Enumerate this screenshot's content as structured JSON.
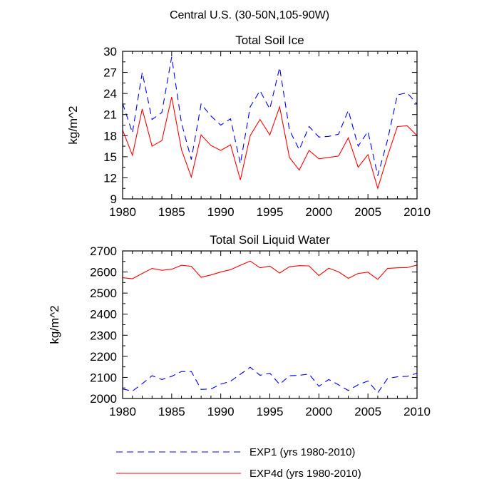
{
  "figure_title": "Central U.S. (30-50N,105-90W)",
  "colors": {
    "EXP1": "#0000ff",
    "EXP4d": "#ff0000",
    "axis": "#000000"
  },
  "legend": [
    {
      "label": "EXP1 (yrs 1980-2010)",
      "color": "#0000ff",
      "dash": "dashed"
    },
    {
      "label": "EXP4d (yrs 1980-2010)",
      "color": "#ff0000",
      "dash": "solid"
    }
  ],
  "chart_data": [
    {
      "type": "line",
      "title": "Total Soil Ice",
      "xlabel": "",
      "ylabel": "kg/m^2",
      "xlim": [
        1980,
        2010
      ],
      "ylim": [
        9,
        30
      ],
      "xticks": [
        1980,
        1985,
        1990,
        1995,
        2000,
        2005,
        2010
      ],
      "yticks": [
        9,
        12,
        15,
        18,
        21,
        24,
        27,
        30
      ],
      "x": [
        1980,
        1981,
        1982,
        1983,
        1984,
        1985,
        1986,
        1987,
        1988,
        1989,
        1990,
        1991,
        1992,
        1993,
        1994,
        1995,
        1996,
        1997,
        1998,
        1999,
        2000,
        2001,
        2002,
        2003,
        2004,
        2005,
        2006,
        2007,
        2008,
        2009,
        2010
      ],
      "series": [
        {
          "name": "EXP1",
          "color": "#0000ff",
          "dash": "dashed",
          "values": [
            22.6,
            18.4,
            27.0,
            20.3,
            21.3,
            29.2,
            19.8,
            14.6,
            22.5,
            20.8,
            19.5,
            20.4,
            14.0,
            22.1,
            24.4,
            21.8,
            27.7,
            18.8,
            16.0,
            19.3,
            17.8,
            17.9,
            18.2,
            21.6,
            16.5,
            18.6,
            12.3,
            17.4,
            23.8,
            24.1,
            22.5
          ]
        },
        {
          "name": "EXP4d",
          "color": "#ff0000",
          "dash": "solid",
          "values": [
            18.8,
            15.2,
            21.8,
            16.5,
            17.3,
            23.5,
            16.0,
            12.1,
            18.1,
            16.6,
            15.9,
            16.7,
            11.7,
            18.0,
            20.3,
            18.1,
            22.1,
            14.9,
            13.1,
            15.9,
            14.7,
            14.9,
            15.1,
            17.7,
            13.5,
            15.3,
            10.5,
            15.1,
            19.3,
            19.4,
            18.0
          ]
        }
      ]
    },
    {
      "type": "line",
      "title": "Total Soil Liquid Water",
      "xlabel": "",
      "ylabel": "kg/m^2",
      "xlim": [
        1980,
        2010
      ],
      "ylim": [
        2000,
        2700
      ],
      "xticks": [
        1980,
        1985,
        1990,
        1995,
        2000,
        2005,
        2010
      ],
      "yticks": [
        2000,
        2100,
        2200,
        2300,
        2400,
        2500,
        2600,
        2700
      ],
      "x": [
        1980,
        1981,
        1982,
        1983,
        1984,
        1985,
        1986,
        1987,
        1988,
        1989,
        1990,
        1991,
        1992,
        1993,
        1994,
        1995,
        1996,
        1997,
        1998,
        1999,
        2000,
        2001,
        2002,
        2003,
        2004,
        2005,
        2006,
        2007,
        2008,
        2009,
        2010
      ],
      "series": [
        {
          "name": "EXP1",
          "color": "#0000ff",
          "dash": "dashed",
          "values": [
            2045,
            2035,
            2070,
            2108,
            2090,
            2105,
            2128,
            2128,
            2043,
            2045,
            2068,
            2082,
            2115,
            2148,
            2110,
            2120,
            2067,
            2108,
            2110,
            2116,
            2058,
            2090,
            2065,
            2038,
            2065,
            2083,
            2027,
            2095,
            2103,
            2105,
            2120
          ]
        },
        {
          "name": "EXP4d",
          "color": "#ff0000",
          "dash": "solid",
          "values": [
            2573,
            2568,
            2593,
            2617,
            2608,
            2613,
            2632,
            2627,
            2575,
            2586,
            2600,
            2611,
            2632,
            2652,
            2620,
            2628,
            2595,
            2625,
            2630,
            2629,
            2583,
            2618,
            2601,
            2570,
            2593,
            2599,
            2565,
            2617,
            2620,
            2621,
            2633
          ]
        }
      ]
    }
  ]
}
